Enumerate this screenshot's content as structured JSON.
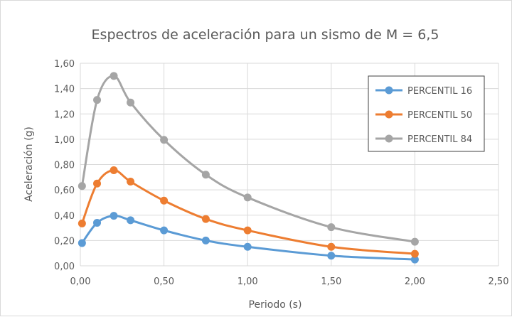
{
  "chart_data": {
    "type": "line",
    "title": "Espectros de aceleración para un sismo de M = 6,5",
    "xlabel": "Periodo (s)",
    "ylabel": "Aceleración (g)",
    "xlim": [
      0,
      2.5
    ],
    "ylim": [
      0,
      1.6
    ],
    "x_ticks": [
      "0,00",
      "0,50",
      "1,00",
      "1,50",
      "2,00",
      "2,50"
    ],
    "y_ticks": [
      "0,00",
      "0,20",
      "0,40",
      "0,60",
      "0,80",
      "1,00",
      "1,20",
      "1,40",
      "1,60"
    ],
    "grid": true,
    "legend_position": "top-right",
    "x": [
      0.01,
      0.1,
      0.2,
      0.3,
      0.5,
      0.75,
      1.0,
      1.5,
      2.0
    ],
    "series": [
      {
        "name": "PERCENTIL 16",
        "color": "#5b9bd5",
        "values": [
          0.18,
          0.34,
          0.395,
          0.36,
          0.28,
          0.2,
          0.15,
          0.08,
          0.05
        ]
      },
      {
        "name": "PERCENTIL 50",
        "color": "#ed7d31",
        "values": [
          0.335,
          0.65,
          0.755,
          0.665,
          0.515,
          0.37,
          0.28,
          0.15,
          0.095
        ]
      },
      {
        "name": "PERCENTIL 84",
        "color": "#a5a5a5",
        "values": [
          0.63,
          1.31,
          1.5,
          1.29,
          0.995,
          0.72,
          0.54,
          0.305,
          0.19
        ]
      }
    ]
  }
}
